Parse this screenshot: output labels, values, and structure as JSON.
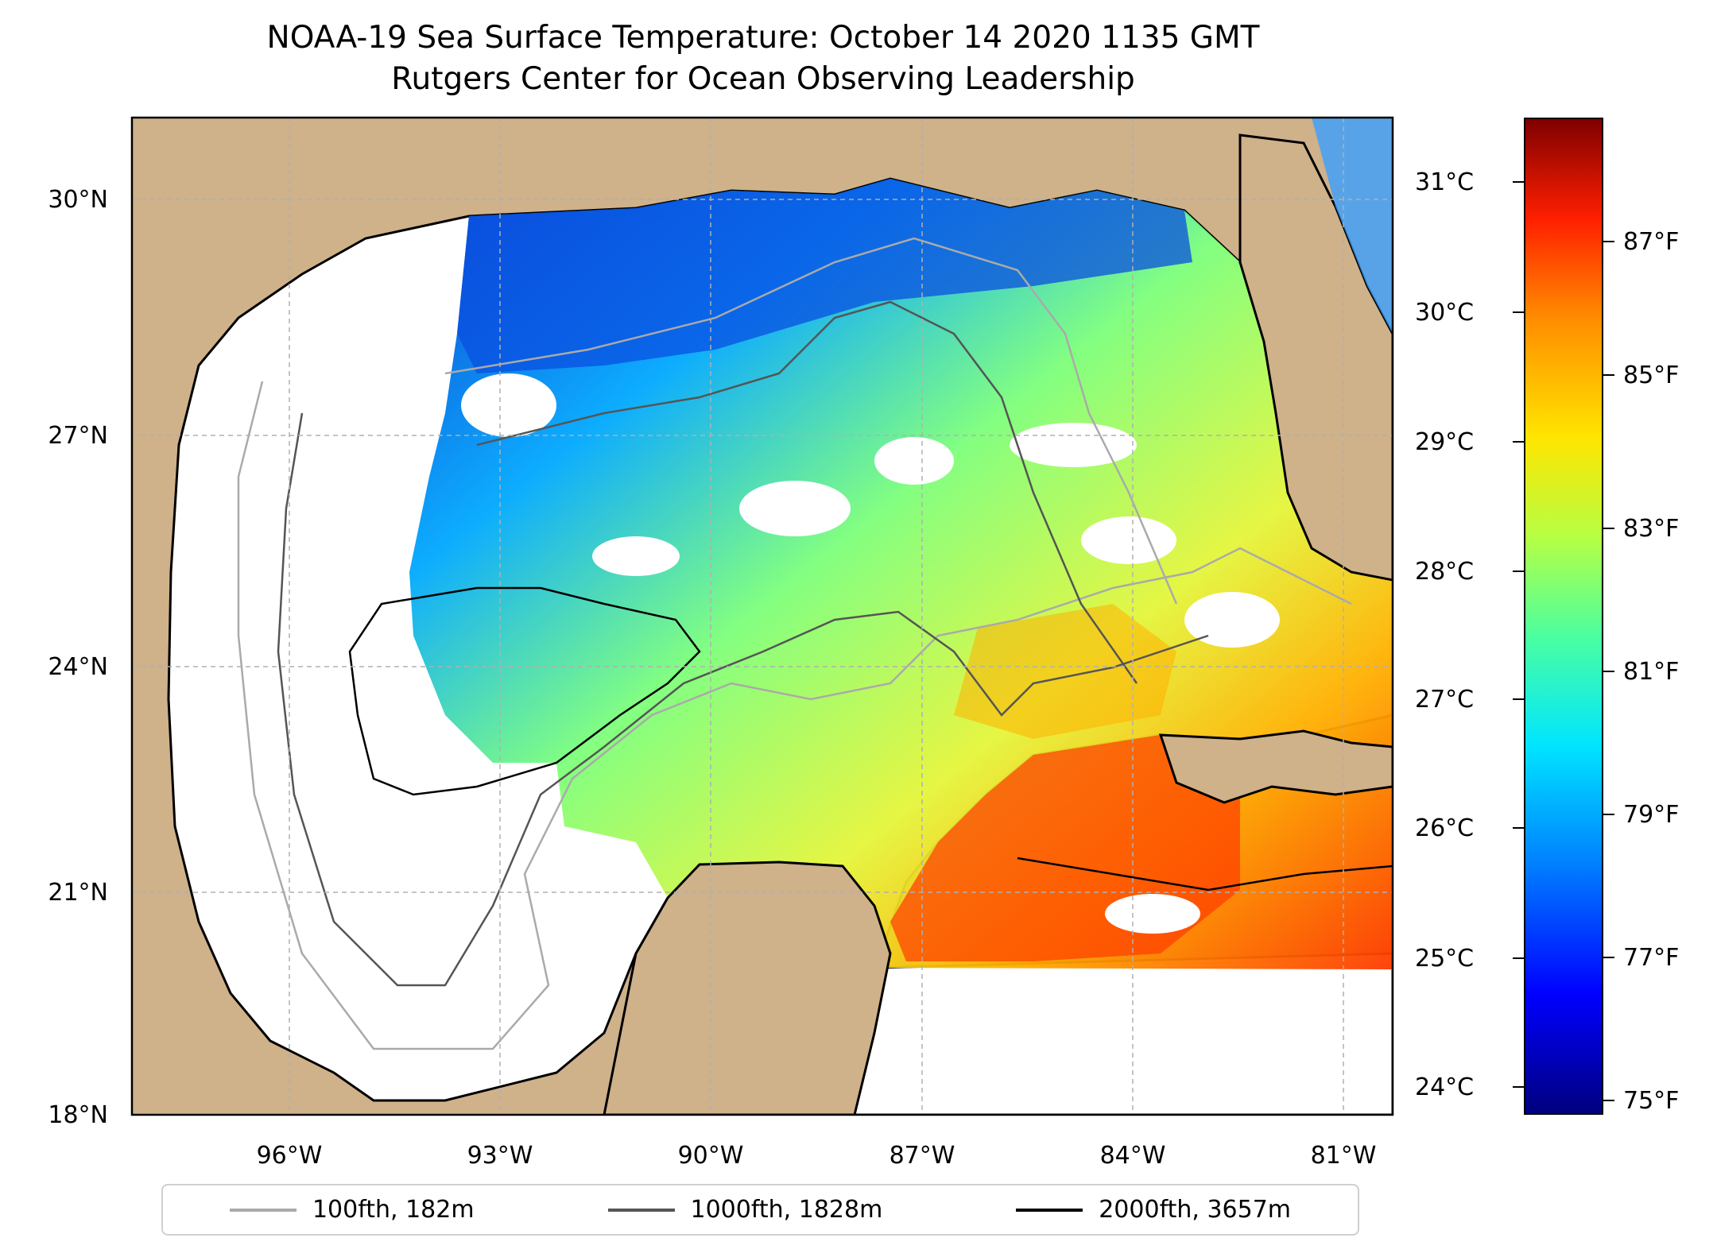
{
  "title": {
    "line1": "NOAA-19 Sea Surface Temperature: October 14 2020 1135 GMT",
    "line2": "Rutgers Center for Ocean Observing Leadership"
  },
  "axes": {
    "lat_labels": [
      "30°N",
      "27°N",
      "24°N",
      "21°N",
      "18°N"
    ],
    "lon_labels": [
      "96°W",
      "93°W",
      "90°W",
      "87°W",
      "84°W",
      "81°W"
    ]
  },
  "legend": [
    {
      "label": "100fth, 182m",
      "color": "#aaaaaa"
    },
    {
      "label": "1000fth, 1828m",
      "color": "#555555"
    },
    {
      "label": "2000fth, 3657m",
      "color": "#000000"
    }
  ],
  "colorbar": {
    "celsius": [
      "31°C",
      "30°C",
      "29°C",
      "28°C",
      "27°C",
      "26°C",
      "25°C",
      "24°C"
    ],
    "fahrenheit": [
      "87°F",
      "85°F",
      "83°F",
      "81°F",
      "79°F",
      "77°F",
      "75°F"
    ]
  },
  "colors": {
    "land": "#cfb18a",
    "cold": "#0033cc",
    "cool": "#00a8ff",
    "mid": "#8cff6a",
    "warm": "#ffd700",
    "hot": "#ff3a00"
  }
}
